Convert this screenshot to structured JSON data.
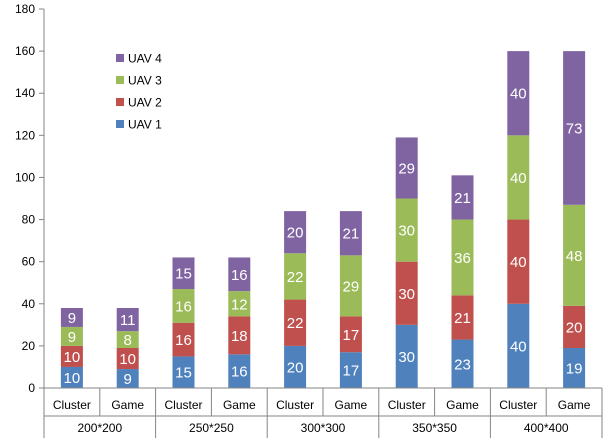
{
  "chart_data": {
    "type": "bar",
    "stacked": true,
    "title": "",
    "xlabel": "",
    "ylabel": "",
    "ylim": [
      0,
      180
    ],
    "y_ticks": [
      0,
      20,
      40,
      60,
      80,
      100,
      120,
      140,
      160,
      180
    ],
    "grid": false,
    "legend_position": "top-left",
    "categories": [
      "Cluster",
      "Game",
      "Cluster",
      "Game",
      "Cluster",
      "Game",
      "Cluster",
      "Game",
      "Cluster",
      "Game"
    ],
    "groups": [
      {
        "label": "200*200",
        "span": 2
      },
      {
        "label": "250*250",
        "span": 2
      },
      {
        "label": "300*300",
        "span": 2
      },
      {
        "label": "350*350",
        "span": 2
      },
      {
        "label": "400*400",
        "span": 2
      }
    ],
    "series": [
      {
        "name": "UAV 1",
        "color": "#4f81bd",
        "values": [
          10,
          9,
          15,
          16,
          20,
          17,
          30,
          23,
          40,
          19
        ]
      },
      {
        "name": "UAV 2",
        "color": "#c0504d",
        "values": [
          10,
          10,
          16,
          18,
          22,
          17,
          30,
          21,
          40,
          20
        ]
      },
      {
        "name": "UAV 3",
        "color": "#9bbb59",
        "values": [
          9,
          8,
          16,
          12,
          22,
          29,
          30,
          36,
          40,
          48
        ]
      },
      {
        "name": "UAV 4",
        "color": "#8064a2",
        "values": [
          9,
          11,
          15,
          16,
          20,
          21,
          29,
          21,
          40,
          73
        ]
      }
    ],
    "legend_order": [
      "UAV 4",
      "UAV 3",
      "UAV 2",
      "UAV 1"
    ]
  }
}
